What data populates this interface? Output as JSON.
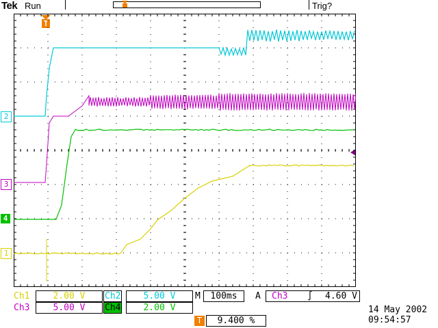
{
  "header": {
    "brand": "Tek",
    "run_state": "Run",
    "trigger_state": "Trig?"
  },
  "channels": [
    {
      "id": "1",
      "marker": "1",
      "color": "#d8d000",
      "scale": "2.00 V",
      "label": "Ch1"
    },
    {
      "id": "2",
      "marker": "2",
      "color": "#00c8d8",
      "scale": "5.00 V",
      "label": "Ch2"
    },
    {
      "id": "3",
      "marker": "3",
      "color": "#c000c0",
      "scale": "5.00 V",
      "label": "Ch3"
    },
    {
      "id": "4",
      "marker": "4",
      "color": "#00c000",
      "scale": "2.00 V",
      "label": "Ch4"
    }
  ],
  "trigger_marker": "T",
  "timebase": {
    "prefix": "M",
    "value": "100ms"
  },
  "trigger": {
    "mode": "A",
    "source": "Ch3",
    "slope_symbol": "∫",
    "level": "4.60 V"
  },
  "position": {
    "marker": "T",
    "value": "9.400 %"
  },
  "datetime": {
    "date": "14 May 2002",
    "time": "09:54:57"
  },
  "colors": {
    "grid": "#000000",
    "background": "#ffffff",
    "trigger_marker": "#f08000",
    "level_marker": "#800080"
  }
}
